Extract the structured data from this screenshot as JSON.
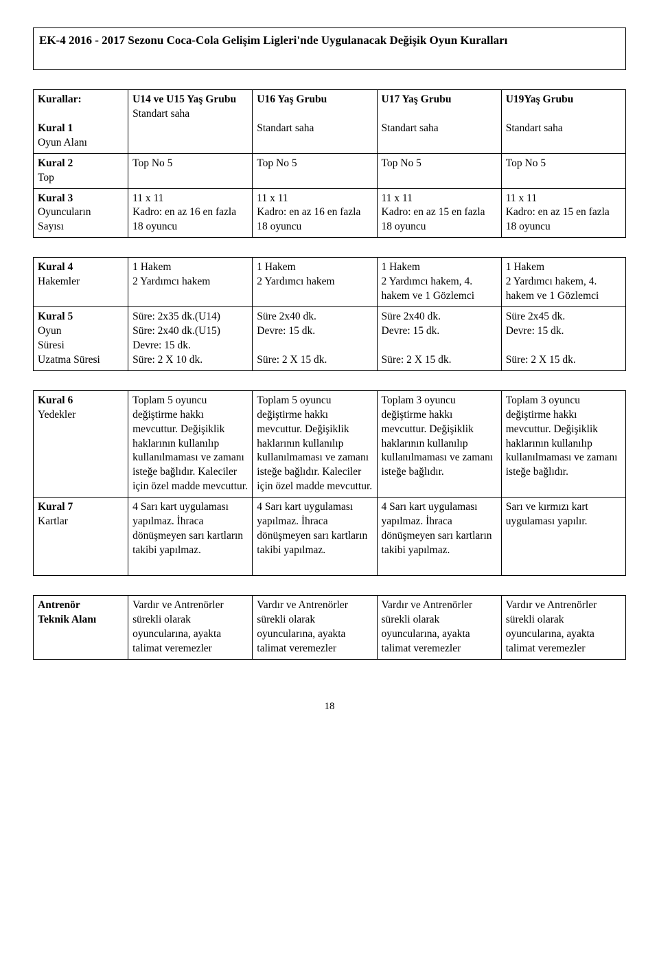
{
  "title": "EK-4 2016 - 2017 Sezonu Coca-Cola Gelişim Ligleri'nde Uygulanacak Değişik Oyun Kuralları",
  "header": {
    "label": "Kurallar:",
    "u14": "U14 ve U15 Yaş Grubu",
    "u16": "U16 Yaş Grubu",
    "u17": "U17 Yaş Grubu",
    "u19": "U19Yaş Grubu"
  },
  "kural1": {
    "title": "Kural 1",
    "sub": "Oyun Alanı",
    "u14": "Standart saha",
    "u16": "Standart saha",
    "u17": "Standart saha",
    "u19": "Standart saha"
  },
  "kural2": {
    "title": "Kural 2",
    "sub": "Top",
    "u14": "Top No 5",
    "u16": "Top No 5",
    "u17": "Top No 5",
    "u19": "Top No 5"
  },
  "kural3": {
    "title": "Kural 3",
    "sub1": "Oyuncuların",
    "sub2": "Sayısı",
    "u14": "11 x 11\nKadro:  en az  16 en fazla 18  oyuncu",
    "u16": "11 x 11\nKadro:  en az  16 en fazla 18 oyuncu",
    "u17": "11 x 11\nKadro:  en az  15 en fazla 18 oyuncu",
    "u19": "11 x 11\nKadro:  en az  15 en fazla 18  oyuncu"
  },
  "kural4": {
    "title": "Kural 4",
    "sub": "Hakemler",
    "u14": "1 Hakem\n2 Yardımcı hakem",
    "u16": "1 Hakem\n2 Yardımcı hakem",
    "u17": "1 Hakem\n2 Yardımcı hakem, 4. hakem ve 1 Gözlemci",
    "u19": "1 Hakem\n2 Yardımcı hakem, 4. hakem ve 1 Gözlemci"
  },
  "kural5": {
    "title": "Kural 5",
    "sub1": "Oyun",
    "sub2": "Süresi",
    "sub3": "Uzatma Süresi",
    "u14": "Süre:  2x35  dk.(U14)\nSüre:  2x40  dk.(U15)\nDevre: 15  dk.\nSüre: 2 X 10 dk.",
    "u16": "Süre   2x40  dk.\nDevre:   15  dk.\n\nSüre: 2 X 15 dk.",
    "u17": "Süre   2x40  dk.\nDevre:   15  dk.\n\nSüre: 2 X 15 dk.",
    "u19": "Süre   2x45  dk.\nDevre:   15  dk.\n\nSüre: 2 X 15 dk."
  },
  "kural6": {
    "title": "Kural 6",
    "sub": "Yedekler",
    "u14": "Toplam 5 oyuncu değiştirme hakkı mevcuttur. Değişiklik haklarının kullanılıp kullanılmaması ve zamanı isteğe bağlıdır. Kaleciler için özel madde mevcuttur.",
    "u16": "Toplam 5 oyuncu değiştirme hakkı mevcuttur. Değişiklik haklarının kullanılıp kullanılmaması ve zamanı isteğe bağlıdır. Kaleciler için özel madde mevcuttur.",
    "u17": "Toplam 3 oyuncu değiştirme hakkı mevcuttur. Değişiklik haklarının kullanılıp kullanılmaması ve zamanı isteğe bağlıdır.",
    "u19": "Toplam 3 oyuncu değiştirme hakkı mevcuttur. Değişiklik haklarının kullanılıp kullanılmaması ve zamanı isteğe bağlıdır."
  },
  "kural7": {
    "title": "Kural 7",
    "sub": "Kartlar",
    "u14": "4 Sarı kart uygulaması yapılmaz. İhraca dönüşmeyen sarı kartların takibi yapılmaz.",
    "u16": "4 Sarı kart uygulaması yapılmaz. İhraca dönüşmeyen sarı kartların takibi yapılmaz.",
    "u17": "4 Sarı kart uygulaması yapılmaz. İhraca dönüşmeyen sarı kartların takibi yapılmaz.",
    "u19": "Sarı ve kırmızı kart uygulaması yapılır."
  },
  "antrenor": {
    "title": "Antrenör",
    "sub": "Teknik Alanı",
    "u14": "Vardır ve Antrenörler sürekli olarak oyuncularına, ayakta talimat veremezler",
    "u16": "Vardır ve Antrenörler sürekli olarak oyuncularına, ayakta talimat veremezler",
    "u17": "Vardır ve Antrenörler sürekli olarak oyuncularına, ayakta talimat veremezler",
    "u19": "Vardır ve Antrenörler sürekli olarak oyuncularına, ayakta talimat veremezler"
  },
  "page_number": "18"
}
